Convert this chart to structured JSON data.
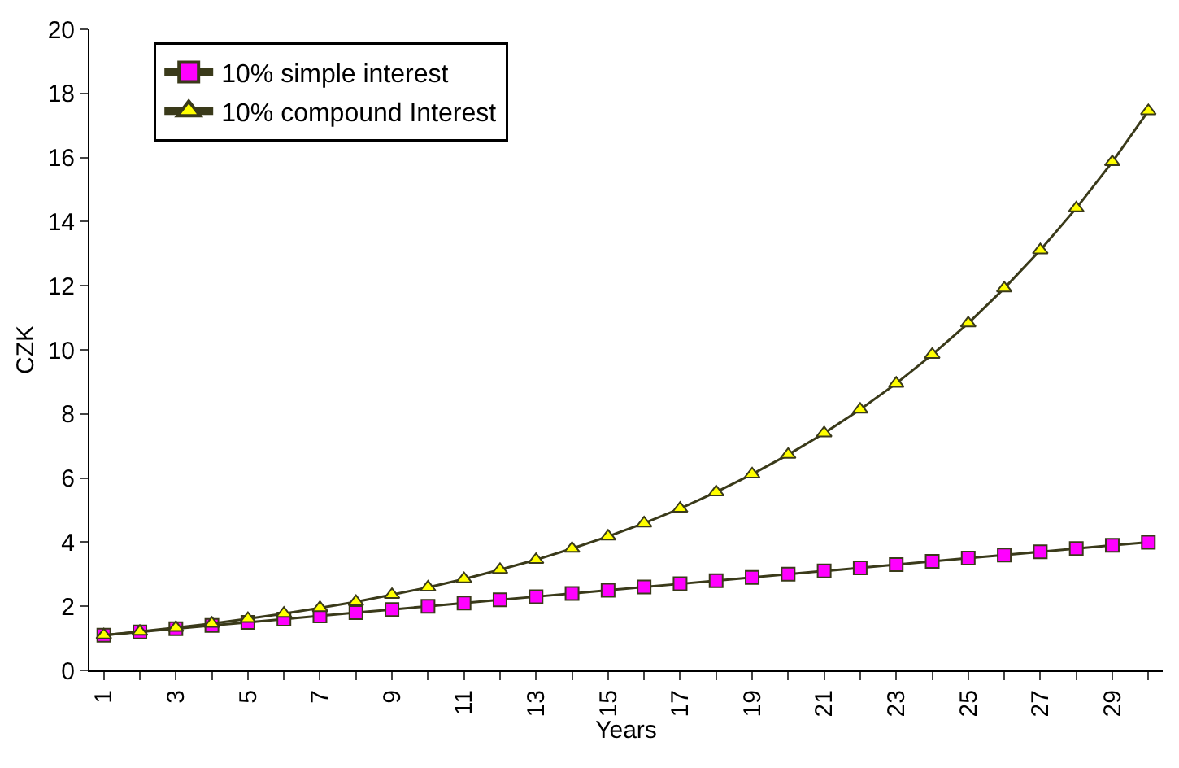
{
  "chart_data": {
    "type": "line",
    "xlabel": "Years",
    "ylabel": "CZK",
    "x": [
      1,
      2,
      3,
      4,
      5,
      6,
      7,
      8,
      9,
      10,
      11,
      12,
      13,
      14,
      15,
      16,
      17,
      18,
      19,
      20,
      21,
      22,
      23,
      24,
      25,
      26,
      27,
      28,
      29,
      30
    ],
    "series": [
      {
        "name": "10% simple interest",
        "color": "#ff00ff",
        "marker": "square",
        "values": [
          1.1,
          1.2,
          1.3,
          1.4,
          1.5,
          1.6,
          1.7,
          1.8,
          1.9,
          2.0,
          2.1,
          2.2,
          2.3,
          2.4,
          2.5,
          2.6,
          2.7,
          2.8,
          2.9,
          3.0,
          3.1,
          3.2,
          3.3,
          3.4,
          3.5,
          3.6,
          3.7,
          3.8,
          3.9,
          4.0
        ]
      },
      {
        "name": "10% compound Interest",
        "color": "#ffff00",
        "marker": "triangle",
        "values": [
          1.1,
          1.21,
          1.33,
          1.46,
          1.61,
          1.77,
          1.95,
          2.14,
          2.36,
          2.59,
          2.85,
          3.14,
          3.45,
          3.8,
          4.18,
          4.59,
          5.05,
          5.56,
          6.12,
          6.73,
          7.4,
          8.14,
          8.95,
          9.85,
          10.83,
          11.92,
          13.11,
          14.42,
          15.86,
          17.45
        ]
      }
    ],
    "xlim": [
      0.6,
      30.4
    ],
    "xticks": [
      1,
      {
        "value": 2,
        "label": null
      },
      3,
      {
        "value": 4,
        "label": null
      },
      5,
      {
        "value": 6,
        "label": null
      },
      7,
      {
        "value": 8,
        "label": null
      },
      9,
      {
        "value": 10,
        "label": null
      },
      11,
      {
        "value": 12,
        "label": null
      },
      13,
      {
        "value": 14,
        "label": null
      },
      15,
      {
        "value": 16,
        "label": null
      },
      17,
      {
        "value": 18,
        "label": null
      },
      19,
      {
        "value": 20,
        "label": null
      },
      21,
      {
        "value": 22,
        "label": null
      },
      23,
      {
        "value": 24,
        "label": null
      },
      25,
      {
        "value": 26,
        "label": null
      },
      27,
      {
        "value": 28,
        "label": null
      },
      29,
      {
        "value": 30,
        "label": null
      }
    ],
    "ylim": [
      0,
      20
    ],
    "yticks": [
      0,
      2,
      4,
      6,
      8,
      10,
      12,
      14,
      16,
      18,
      20
    ],
    "legend": "top left"
  }
}
